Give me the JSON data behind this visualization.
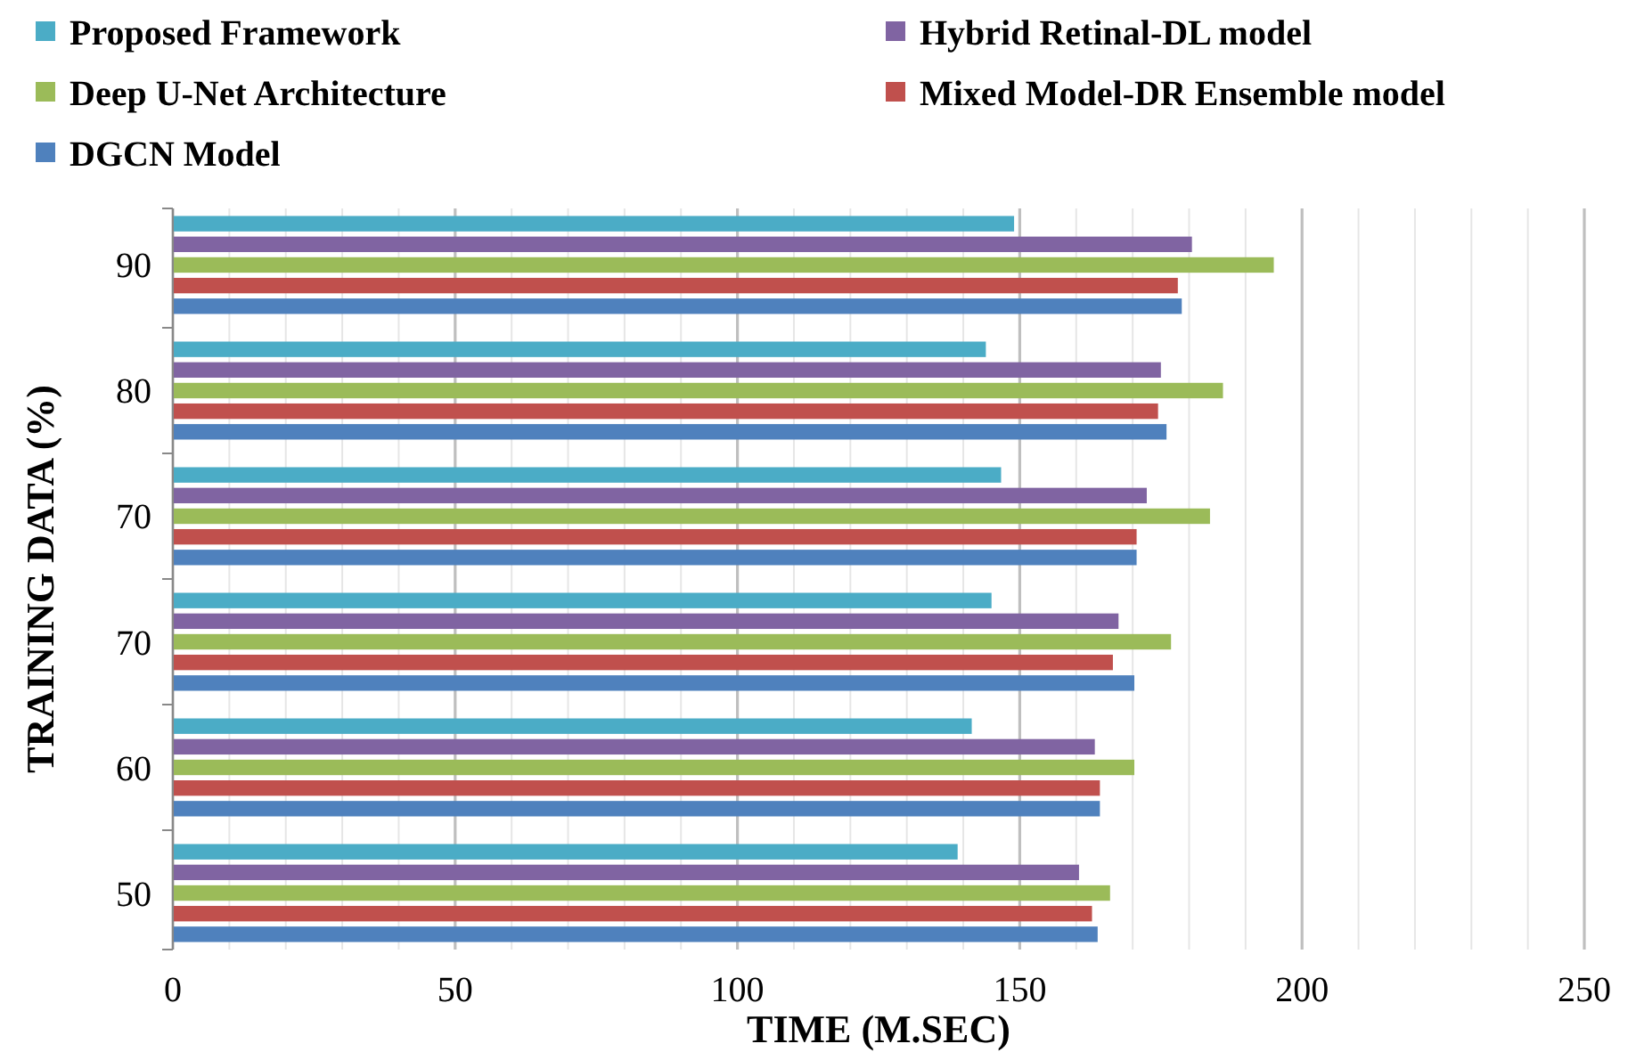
{
  "chart_data": {
    "type": "bar",
    "orientation": "horizontal",
    "xlabel": "TIME  (M.SEC)",
    "ylabel": "TRAINING DATA (%)",
    "categories": [
      "90",
      "80",
      "70",
      "70",
      "60",
      "50"
    ],
    "series": [
      {
        "name": "Proposed Framework",
        "color": "#4bacc6",
        "values": [
          149,
          144,
          146.7,
          145,
          141.5,
          139
        ]
      },
      {
        "name": "Hybrid Retinal-DL model",
        "color": "#8064a2",
        "values": [
          180.5,
          175,
          172.5,
          167.5,
          163.3,
          160.5
        ]
      },
      {
        "name": "Deep U-Net Architecture",
        "color": "#9bbb59",
        "values": [
          195,
          186,
          183.7,
          176.8,
          170.3,
          166
        ]
      },
      {
        "name": "Mixed Model-DR Ensemble model",
        "color": "#c0504d",
        "values": [
          178,
          174.5,
          170.7,
          166.5,
          164.2,
          162.8
        ]
      },
      {
        "name": "DGCN Model",
        "color": "#4f81bd",
        "values": [
          178.7,
          176,
          170.7,
          170.3,
          164.2,
          163.8
        ]
      }
    ],
    "xlim": [
      0,
      250
    ],
    "xticks": [
      0,
      {
        "value": 10,
        "label": null
      },
      {
        "value": 20,
        "label": null
      },
      {
        "value": 30,
        "label": null
      },
      {
        "value": 40,
        "label": null
      },
      50,
      {
        "value": 60,
        "label": null
      },
      {
        "value": 70,
        "label": null
      },
      {
        "value": 80,
        "label": null
      },
      {
        "value": 90,
        "label": null
      },
      100,
      {
        "value": 110,
        "label": null
      },
      {
        "value": 120,
        "label": null
      },
      {
        "value": 130,
        "label": null
      },
      {
        "value": 140,
        "label": null
      },
      150,
      {
        "value": 160,
        "label": null
      },
      {
        "value": 170,
        "label": null
      },
      {
        "value": 180,
        "label": null
      },
      {
        "value": 190,
        "label": null
      },
      200,
      {
        "value": 210,
        "label": null
      },
      {
        "value": 220,
        "label": null
      },
      {
        "value": 230,
        "label": null
      },
      {
        "value": 240,
        "label": null
      },
      250
    ],
    "grid": "x",
    "legend": "top"
  }
}
